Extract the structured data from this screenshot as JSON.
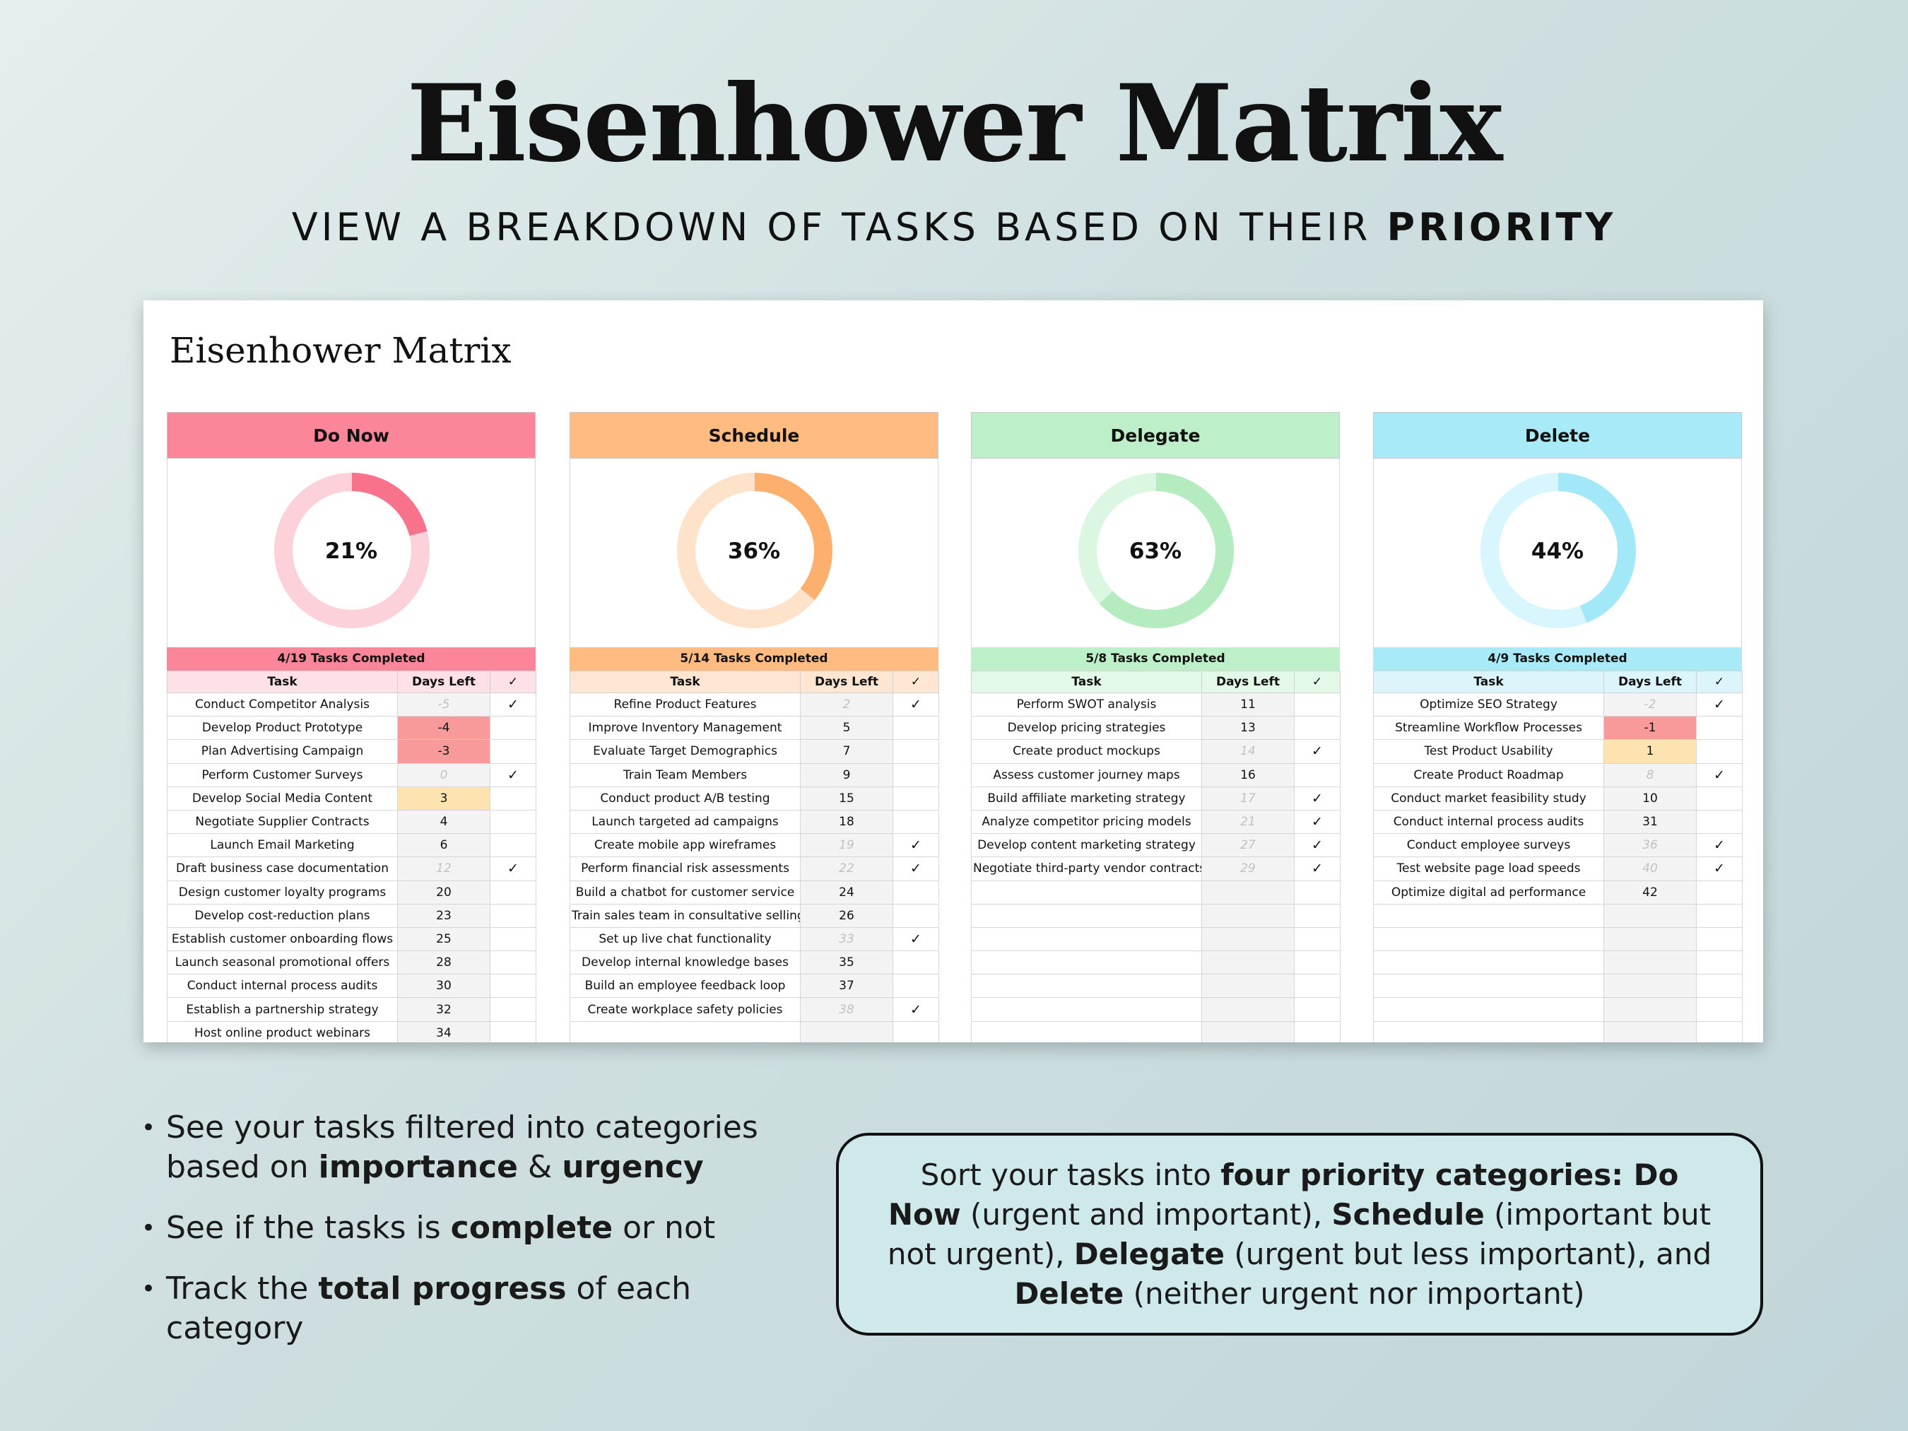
{
  "hero": {
    "title": "Eisenhower Matrix",
    "subtitle_plain": "VIEW A BREAKDOWN OF TASKS BASED ON THEIR ",
    "subtitle_bold": "PRIORITY"
  },
  "sheet": {
    "title": "Eisenhower Matrix",
    "columns": {
      "task": "Task",
      "days": "Days Left",
      "check": "✓"
    },
    "panels": [
      {
        "name": "Do Now",
        "percent_label": "21%",
        "percent": 0.21,
        "completed_label": "4/19 Tasks Completed",
        "colors": {
          "head": "#fb8699",
          "ring": "#fdd1d9",
          "arc": "#f7728a",
          "rowhead": "#fde1e6",
          "band": "#fb8699"
        },
        "rows": [
          {
            "task": "Conduct Competitor Analysis",
            "days": "-5",
            "done": true,
            "check": "✓",
            "hl": ""
          },
          {
            "task": "Develop Product Prototype",
            "days": "-4",
            "done": false,
            "check": "",
            "hl": "red"
          },
          {
            "task": "Plan Advertising Campaign",
            "days": "-3",
            "done": false,
            "check": "",
            "hl": "red"
          },
          {
            "task": "Perform Customer Surveys",
            "days": "0",
            "done": true,
            "check": "✓",
            "hl": ""
          },
          {
            "task": "Develop Social Media Content",
            "days": "3",
            "done": false,
            "check": "",
            "hl": "yellow"
          },
          {
            "task": "Negotiate Supplier Contracts",
            "days": "4",
            "done": false,
            "check": "",
            "hl": ""
          },
          {
            "task": "Launch Email Marketing",
            "days": "6",
            "done": false,
            "check": "",
            "hl": ""
          },
          {
            "task": "Draft business case documentation",
            "days": "12",
            "done": true,
            "check": "✓",
            "hl": ""
          },
          {
            "task": "Design customer loyalty programs",
            "days": "20",
            "done": false,
            "check": "",
            "hl": ""
          },
          {
            "task": "Develop cost-reduction plans",
            "days": "23",
            "done": false,
            "check": "",
            "hl": ""
          },
          {
            "task": "Establish customer onboarding flows",
            "days": "25",
            "done": false,
            "check": "",
            "hl": ""
          },
          {
            "task": "Launch seasonal promotional offers",
            "days": "28",
            "done": false,
            "check": "",
            "hl": ""
          },
          {
            "task": "Conduct internal process audits",
            "days": "30",
            "done": false,
            "check": "",
            "hl": ""
          },
          {
            "task": "Establish a partnership strategy",
            "days": "32",
            "done": false,
            "check": "",
            "hl": ""
          },
          {
            "task": "Host online product webinars",
            "days": "34",
            "done": false,
            "check": "",
            "hl": ""
          }
        ]
      },
      {
        "name": "Schedule",
        "percent_label": "36%",
        "percent": 0.36,
        "completed_label": "5/14 Tasks Completed",
        "colors": {
          "head": "#ffbb80",
          "ring": "#fee2ca",
          "arc": "#fdb06e",
          "rowhead": "#fee6d3",
          "band": "#ffbb80"
        },
        "rows": [
          {
            "task": "Refine Product Features",
            "days": "2",
            "done": true,
            "check": "✓",
            "hl": ""
          },
          {
            "task": "Improve Inventory Management",
            "days": "5",
            "done": false,
            "check": "",
            "hl": ""
          },
          {
            "task": "Evaluate Target Demographics",
            "days": "7",
            "done": false,
            "check": "",
            "hl": ""
          },
          {
            "task": "Train Team Members",
            "days": "9",
            "done": false,
            "check": "",
            "hl": ""
          },
          {
            "task": "Conduct product A/B testing",
            "days": "15",
            "done": false,
            "check": "",
            "hl": ""
          },
          {
            "task": "Launch targeted ad campaigns",
            "days": "18",
            "done": false,
            "check": "",
            "hl": ""
          },
          {
            "task": "Create mobile app wireframes",
            "days": "19",
            "done": true,
            "check": "✓",
            "hl": ""
          },
          {
            "task": "Perform financial risk assessments",
            "days": "22",
            "done": true,
            "check": "✓",
            "hl": ""
          },
          {
            "task": "Build a chatbot for customer service",
            "days": "24",
            "done": false,
            "check": "",
            "hl": ""
          },
          {
            "task": "Train sales team in consultative selling",
            "days": "26",
            "done": false,
            "check": "",
            "hl": ""
          },
          {
            "task": "Set up live chat functionality",
            "days": "33",
            "done": true,
            "check": "✓",
            "hl": ""
          },
          {
            "task": "Develop internal knowledge bases",
            "days": "35",
            "done": false,
            "check": "",
            "hl": ""
          },
          {
            "task": "Build an employee feedback loop",
            "days": "37",
            "done": false,
            "check": "",
            "hl": ""
          },
          {
            "task": "Create workplace safety policies",
            "days": "38",
            "done": true,
            "check": "✓",
            "hl": ""
          },
          {
            "task": "",
            "days": "",
            "done": false,
            "check": "",
            "hl": ""
          }
        ]
      },
      {
        "name": "Delegate",
        "percent_label": "63%",
        "percent": 0.63,
        "completed_label": "5/8 Tasks Completed",
        "colors": {
          "head": "#bdefc8",
          "ring": "#dcf7e1",
          "arc": "#b4ebbf",
          "rowhead": "#e3f8e7",
          "band": "#bdefc8"
        },
        "rows": [
          {
            "task": "Perform SWOT analysis",
            "days": "11",
            "done": false,
            "check": "",
            "hl": ""
          },
          {
            "task": "Develop pricing strategies",
            "days": "13",
            "done": false,
            "check": "",
            "hl": ""
          },
          {
            "task": "Create product mockups",
            "days": "14",
            "done": true,
            "check": "✓",
            "hl": ""
          },
          {
            "task": "Assess customer journey maps",
            "days": "16",
            "done": false,
            "check": "",
            "hl": ""
          },
          {
            "task": "Build affiliate marketing strategy",
            "days": "17",
            "done": true,
            "check": "✓",
            "hl": ""
          },
          {
            "task": "Analyze competitor pricing models",
            "days": "21",
            "done": true,
            "check": "✓",
            "hl": ""
          },
          {
            "task": "Develop content marketing strategy",
            "days": "27",
            "done": true,
            "check": "✓",
            "hl": ""
          },
          {
            "task": "Negotiate third-party vendor contracts",
            "days": "29",
            "done": true,
            "check": "✓",
            "hl": ""
          },
          {
            "task": "",
            "days": "",
            "done": false,
            "check": "",
            "hl": ""
          },
          {
            "task": "",
            "days": "",
            "done": false,
            "check": "",
            "hl": ""
          },
          {
            "task": "",
            "days": "",
            "done": false,
            "check": "",
            "hl": ""
          },
          {
            "task": "",
            "days": "",
            "done": false,
            "check": "",
            "hl": ""
          },
          {
            "task": "",
            "days": "",
            "done": false,
            "check": "",
            "hl": ""
          },
          {
            "task": "",
            "days": "",
            "done": false,
            "check": "",
            "hl": ""
          },
          {
            "task": "",
            "days": "",
            "done": false,
            "check": "",
            "hl": ""
          }
        ]
      },
      {
        "name": "Delete",
        "percent_label": "44%",
        "percent": 0.44,
        "completed_label": "4/9 Tasks Completed",
        "colors": {
          "head": "#a9eaf9",
          "ring": "#d8f6fd",
          "arc": "#a2e8f8",
          "rowhead": "#dcf5fb",
          "band": "#a9eaf9"
        },
        "rows": [
          {
            "task": "Optimize SEO Strategy",
            "days": "-2",
            "done": true,
            "check": "✓",
            "hl": ""
          },
          {
            "task": "Streamline Workflow Processes",
            "days": "-1",
            "done": false,
            "check": "",
            "hl": "red"
          },
          {
            "task": "Test Product Usability",
            "days": "1",
            "done": false,
            "check": "",
            "hl": "yellow"
          },
          {
            "task": "Create Product Roadmap",
            "days": "8",
            "done": true,
            "check": "✓",
            "hl": ""
          },
          {
            "task": "Conduct market feasibility study",
            "days": "10",
            "done": false,
            "check": "",
            "hl": ""
          },
          {
            "task": "Conduct internal process audits",
            "days": "31",
            "done": false,
            "check": "",
            "hl": ""
          },
          {
            "task": "Conduct employee surveys",
            "days": "36",
            "done": true,
            "check": "✓",
            "hl": ""
          },
          {
            "task": "Test website page load speeds",
            "days": "40",
            "done": true,
            "check": "✓",
            "hl": ""
          },
          {
            "task": "Optimize digital ad performance",
            "days": "42",
            "done": false,
            "check": "",
            "hl": ""
          },
          {
            "task": "",
            "days": "",
            "done": false,
            "check": "",
            "hl": ""
          },
          {
            "task": "",
            "days": "",
            "done": false,
            "check": "",
            "hl": ""
          },
          {
            "task": "",
            "days": "",
            "done": false,
            "check": "",
            "hl": ""
          },
          {
            "task": "",
            "days": "",
            "done": false,
            "check": "",
            "hl": ""
          },
          {
            "task": "",
            "days": "",
            "done": false,
            "check": "",
            "hl": ""
          },
          {
            "task": "",
            "days": "",
            "done": false,
            "check": "",
            "hl": ""
          }
        ]
      }
    ]
  },
  "bullets": [
    {
      "parts": [
        {
          "t": "See your tasks filtered into categories based on ",
          "b": false
        },
        {
          "t": "importance",
          "b": true
        },
        {
          "t": " & ",
          "b": false
        },
        {
          "t": "urgency",
          "b": true
        }
      ]
    },
    {
      "parts": [
        {
          "t": "See if the tasks is ",
          "b": false
        },
        {
          "t": "complete",
          "b": true
        },
        {
          "t": " or not",
          "b": false
        }
      ]
    },
    {
      "parts": [
        {
          "t": "Track the ",
          "b": false
        },
        {
          "t": "total progress",
          "b": true
        },
        {
          "t": " of each category",
          "b": false
        }
      ]
    }
  ],
  "note": {
    "parts": [
      {
        "t": "Sort your tasks into ",
        "b": false
      },
      {
        "t": "four priority categories: Do Now",
        "b": true
      },
      {
        "t": " (urgent and important), ",
        "b": false
      },
      {
        "t": "Schedule",
        "b": true
      },
      {
        "t": " (important but not urgent), ",
        "b": false
      },
      {
        "t": "Delegate",
        "b": true
      },
      {
        "t": " (urgent but less important), and ",
        "b": false
      },
      {
        "t": "Delete",
        "b": true
      },
      {
        "t": " (neither urgent nor important)",
        "b": false
      }
    ]
  }
}
